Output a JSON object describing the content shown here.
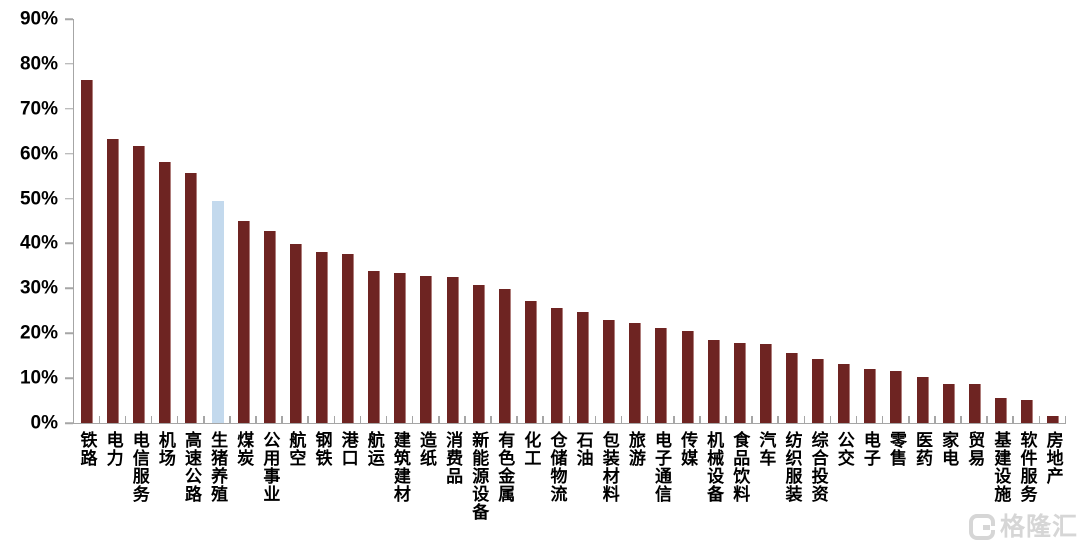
{
  "chart_data": {
    "type": "bar",
    "title": "",
    "xlabel": "",
    "ylabel": "",
    "ylim": [
      0,
      90
    ],
    "ytick_step": 10,
    "ytick_labels": [
      "0%",
      "10%",
      "20%",
      "30%",
      "40%",
      "50%",
      "60%",
      "70%",
      "80%",
      "90%"
    ],
    "grid": false,
    "legend": null,
    "categories": [
      "铁路",
      "电力",
      "电信服务",
      "机场",
      "高速公路",
      "生猪养殖",
      "煤炭",
      "公用事业",
      "航空",
      "钢铁",
      "港口",
      "航运",
      "建筑建材",
      "造纸",
      "消费品",
      "新能源设备",
      "有色金属",
      "化工",
      "仓储物流",
      "石油",
      "包装材料",
      "旅游",
      "电子通信",
      "传媒",
      "机械设备",
      "食品饮料",
      "汽车",
      "纺织服装",
      "综合投资",
      "公交",
      "电子",
      "零售",
      "医药",
      "家电",
      "贸易",
      "基建设施",
      "软件服务",
      "房地产"
    ],
    "values": [
      76.5,
      63.3,
      61.8,
      58.1,
      55.8,
      49.4,
      45.0,
      42.8,
      39.9,
      38.0,
      37.6,
      33.8,
      33.5,
      32.7,
      32.6,
      30.7,
      29.8,
      27.2,
      25.7,
      24.7,
      22.9,
      22.2,
      21.1,
      20.4,
      18.6,
      17.8,
      17.7,
      15.7,
      14.2,
      13.1,
      12.0,
      11.6,
      10.2,
      8.8,
      8.6,
      5.6,
      5.1,
      1.6
    ],
    "highlight_index": 5,
    "highlight_category": "生猪养殖",
    "colors": {
      "bar_default": "#6E2422",
      "bar_highlight": "#C3D9ED",
      "axis": "#A6A6A6",
      "text": "#000000"
    }
  },
  "watermark": {
    "logo": "G",
    "text": "格隆汇"
  }
}
